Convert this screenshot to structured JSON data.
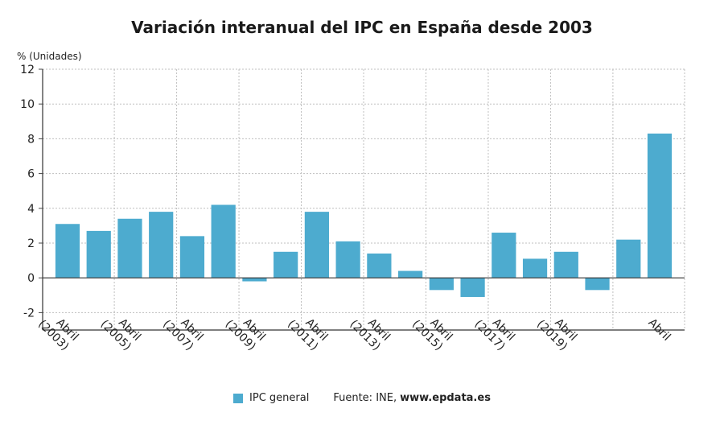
{
  "chart_data": {
    "type": "bar",
    "title": "Variación interanual del IPC en España desde 2003",
    "ylabel": "% (Unidades)",
    "xlabel": "",
    "ylim": [
      -3,
      12
    ],
    "yticks": [
      12,
      10,
      8,
      6,
      4,
      2,
      0,
      -2
    ],
    "ytick_labels": [
      "12",
      "10",
      "8",
      "6",
      "4",
      "2",
      "0",
      "-2"
    ],
    "grid": true,
    "legend_position": "bottom-center",
    "series": [
      {
        "name": "IPC general",
        "color": "#4dabcf",
        "values": [
          3.1,
          2.7,
          3.4,
          3.8,
          2.4,
          4.2,
          -0.2,
          1.5,
          3.8,
          2.1,
          1.4,
          0.4,
          -0.7,
          -1.1,
          2.6,
          1.1,
          1.5,
          -0.7,
          2.2,
          8.3
        ]
      }
    ],
    "x_labels": [
      {
        "index": 0,
        "lines": [
          "Abril",
          "(2003)"
        ]
      },
      {
        "index": 2,
        "lines": [
          "Abril",
          "(2005)"
        ]
      },
      {
        "index": 4,
        "lines": [
          "Abril",
          "(2007)"
        ]
      },
      {
        "index": 6,
        "lines": [
          "Abril",
          "(2009)"
        ]
      },
      {
        "index": 8,
        "lines": [
          "Abril",
          "(2011)"
        ]
      },
      {
        "index": 10,
        "lines": [
          "Abril",
          "(2013)"
        ]
      },
      {
        "index": 12,
        "lines": [
          "Abril",
          "(2015)"
        ]
      },
      {
        "index": 14,
        "lines": [
          "Abril",
          "(2017)"
        ]
      },
      {
        "index": 16,
        "lines": [
          "Abril",
          "(2019)"
        ]
      },
      {
        "index": 19,
        "lines": [
          "Abril"
        ]
      }
    ]
  },
  "legend": {
    "series_label": "IPC general",
    "source_prefix": "Fuente: INE,",
    "source_site": "www.epdata.es"
  }
}
